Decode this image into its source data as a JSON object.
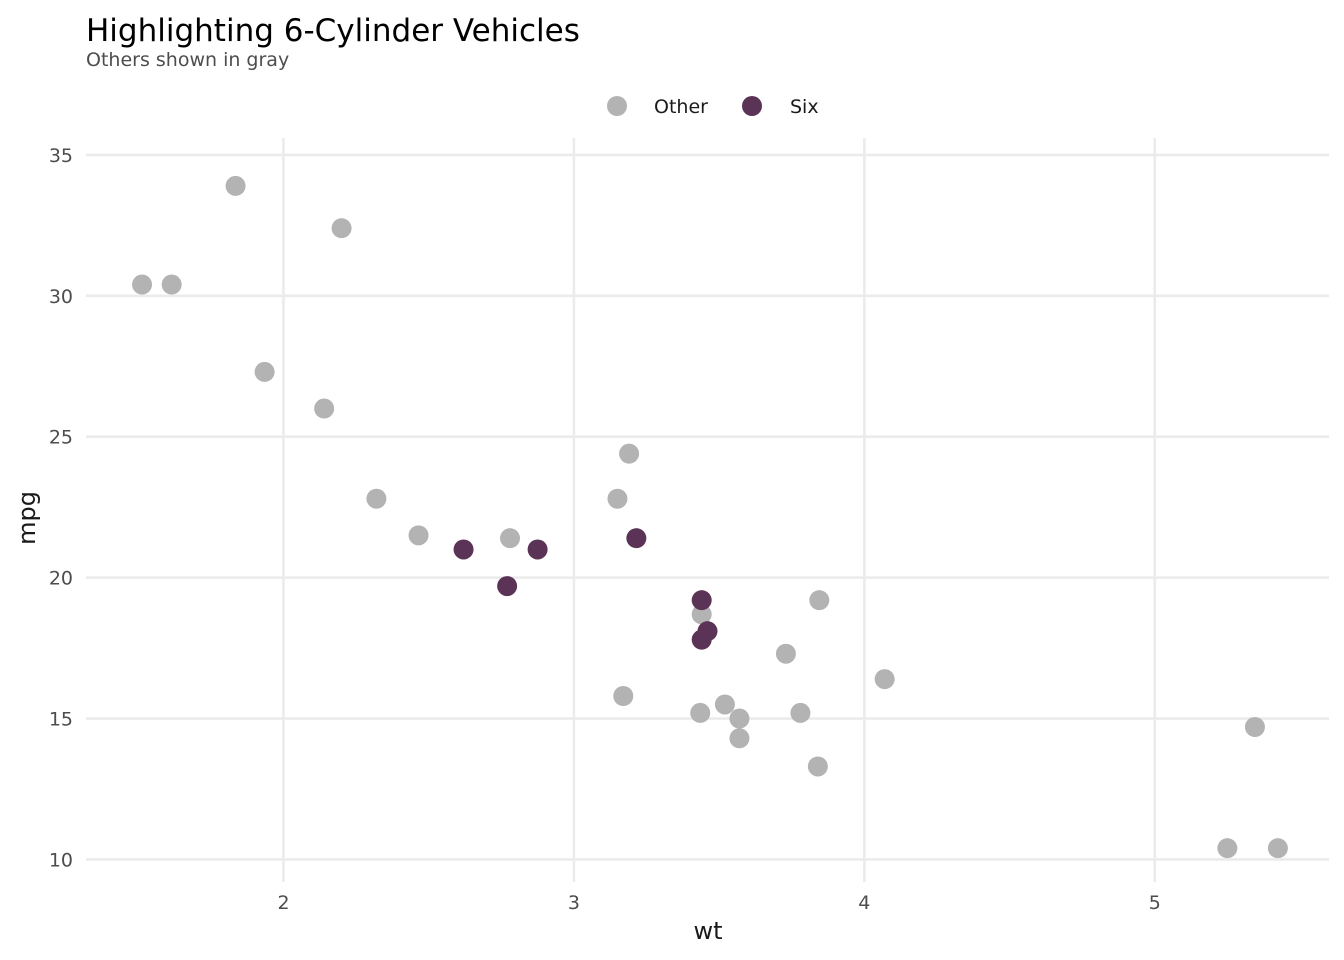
{
  "chart_data": {
    "type": "scatter",
    "title": "Highlighting 6-Cylinder Vehicles",
    "subtitle": "Others shown in gray",
    "xlabel": "wt",
    "ylabel": "mpg",
    "xlim": [
      1.32,
      5.6
    ],
    "ylim": [
      9.2,
      35.6
    ],
    "x_ticks": [
      2,
      3,
      4,
      5
    ],
    "y_ticks": [
      10,
      15,
      20,
      25,
      30,
      35
    ],
    "x_tick_labels": [
      "2",
      "3",
      "4",
      "5"
    ],
    "y_tick_labels": [
      "10",
      "15",
      "20",
      "25",
      "30",
      "35"
    ],
    "grid": true,
    "legend_position": "top",
    "legend": [
      {
        "label": "Other",
        "color": "#b3b3b3"
      },
      {
        "label": "Six",
        "color": "#5b3356"
      }
    ],
    "series": [
      {
        "name": "Other",
        "color": "#b3b3b3",
        "points": [
          [
            2.32,
            22.8
          ],
          [
            3.44,
            18.7
          ],
          [
            3.19,
            24.4
          ],
          [
            3.15,
            22.8
          ],
          [
            4.07,
            16.4
          ],
          [
            3.73,
            17.3
          ],
          [
            3.78,
            15.2
          ],
          [
            5.25,
            10.4
          ],
          [
            5.424,
            10.4
          ],
          [
            5.345,
            14.7
          ],
          [
            2.2,
            32.4
          ],
          [
            1.615,
            30.4
          ],
          [
            1.835,
            33.9
          ],
          [
            2.465,
            21.5
          ],
          [
            3.52,
            15.5
          ],
          [
            3.435,
            15.2
          ],
          [
            3.84,
            13.3
          ],
          [
            3.845,
            19.2
          ],
          [
            1.935,
            27.3
          ],
          [
            2.14,
            26.0
          ],
          [
            1.513,
            30.4
          ],
          [
            3.17,
            15.8
          ],
          [
            3.57,
            15.0
          ],
          [
            2.78,
            21.4
          ],
          [
            3.57,
            14.3
          ]
        ]
      },
      {
        "name": "Six",
        "color": "#5b3356",
        "points": [
          [
            2.62,
            21.0
          ],
          [
            2.875,
            21.0
          ],
          [
            3.215,
            21.4
          ],
          [
            3.44,
            17.8
          ],
          [
            3.46,
            18.1
          ],
          [
            3.44,
            19.2
          ],
          [
            2.77,
            19.7
          ]
        ]
      }
    ]
  }
}
